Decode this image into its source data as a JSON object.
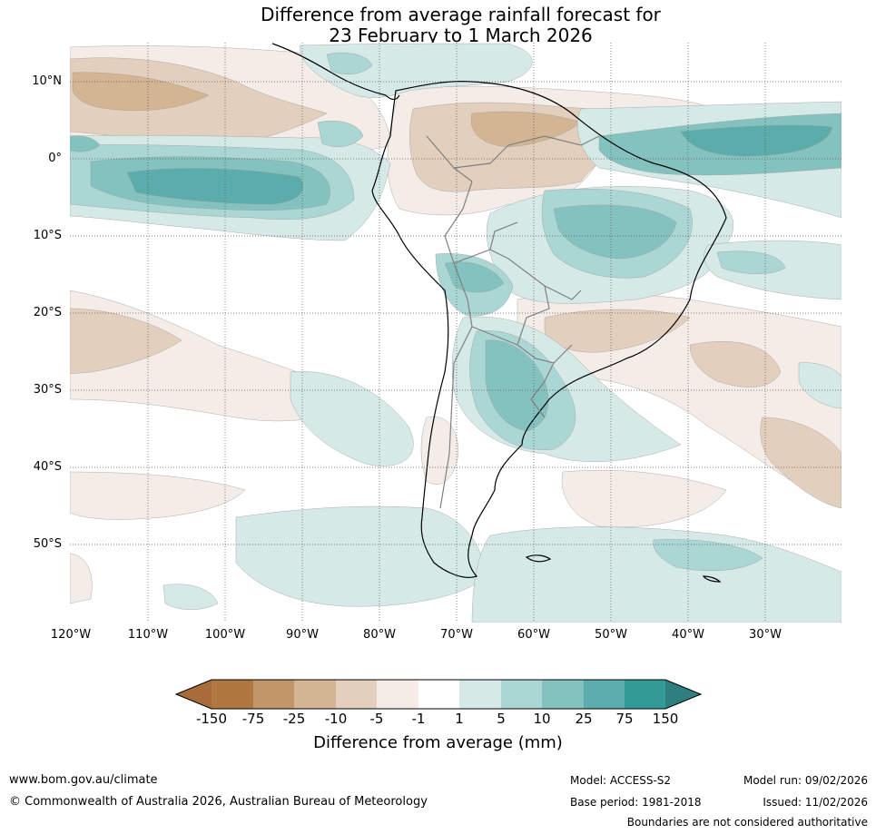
{
  "title": {
    "line1": "Difference from average rainfall forecast for",
    "line2": "23 February to 1 March 2026"
  },
  "map": {
    "lat_labels": [
      "10°N",
      "0°",
      "10°S",
      "20°S",
      "30°S",
      "40°S",
      "50°S"
    ],
    "lon_labels": [
      "120°W",
      "110°W",
      "100°W",
      "90°W",
      "80°W",
      "70°W",
      "60°W",
      "50°W",
      "40°W",
      "30°W"
    ],
    "colors": {
      "dry_150": "#a86b3a",
      "dry_75": "#b07840",
      "dry_25": "#c3966a",
      "dry_10": "#d4b593",
      "dry_5": "#e3cfbe",
      "dry_1": "#f4ece7",
      "neutral": "#ffffff",
      "wet_1": "#d5e9e7",
      "wet_5": "#aad6d4",
      "wet_10": "#84c2c0",
      "wet_25": "#5aadaa",
      "wet_75": "#339a96",
      "wet_150": "#2e7f7d",
      "coast": "#000000",
      "border": "#808080"
    }
  },
  "colorbar": {
    "labels": [
      "-150",
      "-75",
      "-25",
      "-10",
      "-5",
      "-1",
      "1",
      "5",
      "10",
      "25",
      "75",
      "150"
    ],
    "title": "Difference from average (mm)"
  },
  "footer": {
    "url": "www.bom.gov.au/climate",
    "copyright": "© Commonwealth of Australia 2026, Australian Bureau of Meteorology",
    "model": "Model: ACCESS-S2",
    "base_period": "Base period: 1981-2018",
    "model_run": "Model run: 09/02/2026",
    "issued": "Issued: 11/02/2026",
    "disclaimer": "Boundaries are not considered authoritative"
  }
}
